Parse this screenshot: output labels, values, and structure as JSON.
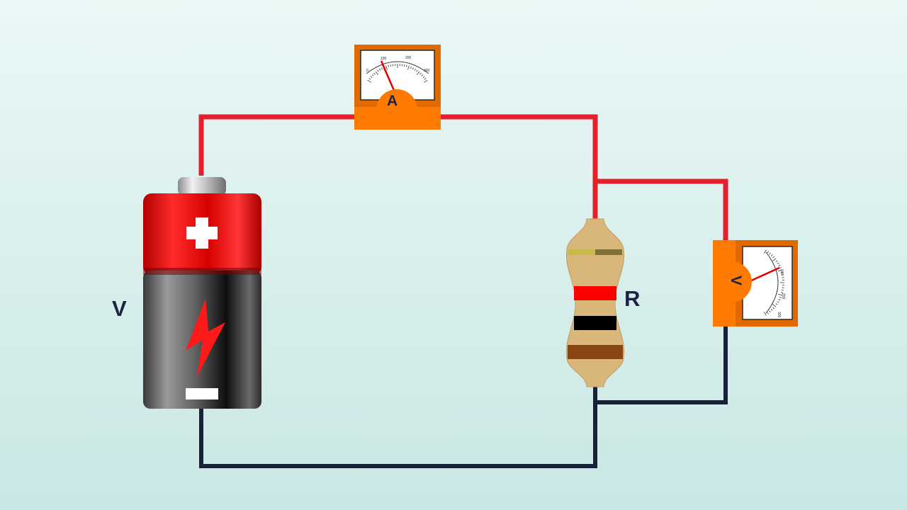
{
  "labels": {
    "battery": "V",
    "resistor": "R",
    "ammeter": "A",
    "voltmeter": "V"
  },
  "ammeter_scale": [
    "0",
    "100",
    "200",
    "300"
  ],
  "voltmeter_scale": [
    "100",
    "200",
    "300"
  ],
  "colors": {
    "background_top": "#eaf8f6",
    "background_bottom": "#c9e7e4",
    "positive_wire": "#e3202b",
    "negative_wire": "#18203a",
    "meter_body": "#ff7a00",
    "battery_cap": "#e01a1a",
    "resistor_body": "#d9b77a",
    "resistor_bands": [
      "#c9b84a",
      "#ff0000",
      "#000000",
      "#8b4513"
    ]
  }
}
